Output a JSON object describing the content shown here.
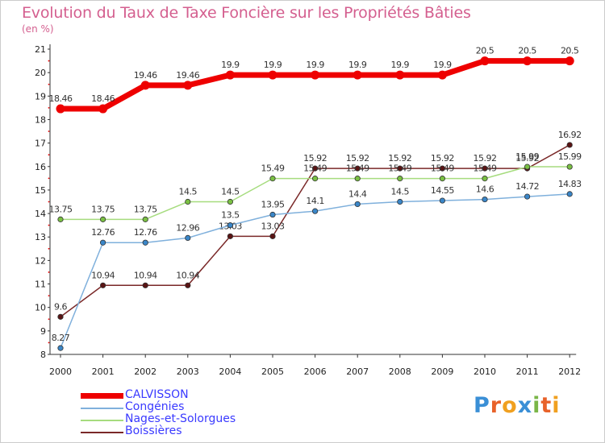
{
  "title": "Evolution du Taux de Taxe Foncière sur les Propriétés Bâties",
  "unit_label": "(en %)",
  "brand_letters": [
    "P",
    "r",
    "o",
    "x",
    "i",
    "t",
    "i"
  ],
  "brand_colors": [
    "#3a8fd6",
    "#e8622a",
    "#f0a020",
    "#3a8fd6",
    "#7ab648",
    "#e8622a",
    "#f0a020"
  ],
  "chart_data": {
    "type": "line",
    "title": "Evolution du Taux de Taxe Foncière sur les Propriétés Bâties",
    "ylabel": "(en %)",
    "xlabel": "",
    "ylim": [
      8,
      21
    ],
    "yticks": [
      8,
      9,
      10,
      11,
      12,
      13,
      14,
      15,
      16,
      17,
      18,
      19,
      20,
      21
    ],
    "categories": [
      "2000",
      "2001",
      "2002",
      "2003",
      "2004",
      "2005",
      "2006",
      "2007",
      "2008",
      "2009",
      "2010",
      "2011",
      "2012"
    ],
    "series": [
      {
        "name": "Boissières",
        "color": "#7a2828",
        "marker": "#5a1414",
        "width": 1.5,
        "values": [
          9.6,
          10.94,
          10.94,
          10.94,
          13.03,
          13.03,
          15.92,
          15.92,
          15.92,
          15.92,
          15.92,
          15.92,
          16.92
        ],
        "labels": [
          "9.6",
          "10.94",
          "10.94",
          "10.94",
          "13.03",
          "13.03",
          "15.92",
          "15.92",
          "15.92",
          "15.92",
          "15.92",
          "15.92",
          "16.92"
        ]
      },
      {
        "name": "Congénies",
        "color": "#7fb0dc",
        "marker": "#3a86c8",
        "width": 1.5,
        "values": [
          8.27,
          12.76,
          12.76,
          12.96,
          13.5,
          13.95,
          14.1,
          14.4,
          14.5,
          14.55,
          14.6,
          14.72,
          14.83
        ],
        "labels": [
          "8.27",
          "12.76",
          "12.76",
          "12.96",
          "13.5",
          "13.95",
          "14.1",
          "14.4",
          "14.5",
          "14.55",
          "14.6",
          "14.72",
          "14.83"
        ]
      },
      {
        "name": "Nages-et-Solorgues",
        "color": "#a6dc7e",
        "marker": "#7ac043",
        "width": 1.5,
        "values": [
          13.75,
          13.75,
          13.75,
          14.5,
          14.5,
          15.49,
          15.49,
          15.49,
          15.49,
          15.49,
          15.49,
          15.99,
          15.99
        ],
        "labels": [
          "13.75",
          "13.75",
          "13.75",
          "14.5",
          "14.5",
          "15.49",
          "15.49",
          "15.49",
          "15.49",
          "15.49",
          "15.49",
          "15.99",
          "15.99"
        ]
      },
      {
        "name": "CALVISSON",
        "color": "#ee0000",
        "marker": "#ee0000",
        "width": 7,
        "values": [
          18.46,
          18.46,
          19.46,
          19.46,
          19.9,
          19.9,
          19.9,
          19.9,
          19.9,
          19.9,
          20.5,
          20.5,
          20.5
        ],
        "labels": [
          "18.46",
          "18.46",
          "19.46",
          "19.46",
          "19.9",
          "19.9",
          "19.9",
          "19.9",
          "19.9",
          "19.9",
          "20.5",
          "20.5",
          "20.5"
        ]
      }
    ],
    "legend": [
      {
        "name": "CALVISSON",
        "color": "#ee0000",
        "text_color": "#3a3aff",
        "thick": true
      },
      {
        "name": "Congénies",
        "color": "#7fb0dc",
        "text_color": "#3a3aff",
        "thick": false
      },
      {
        "name": "Nages-et-Solorgues",
        "color": "#a6dc7e",
        "text_color": "#3a3aff",
        "thick": false
      },
      {
        "name": "Boissières",
        "color": "#7a2828",
        "text_color": "#3a3aff",
        "thick": false
      }
    ],
    "legend_position": "bottom-left",
    "grid": false
  }
}
